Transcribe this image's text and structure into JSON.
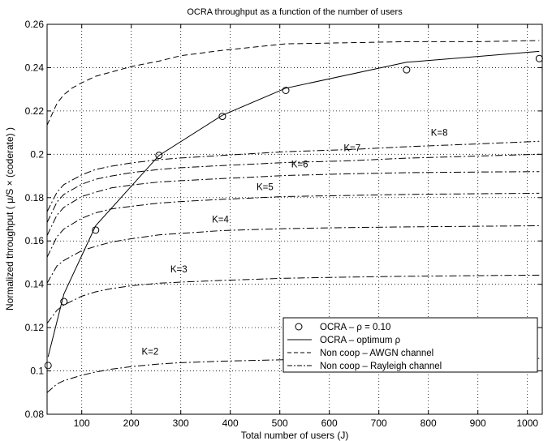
{
  "chart_data": {
    "type": "line",
    "title": "OCRA throughput as a function of the number of users",
    "xlabel": "Total number of users (J)",
    "ylabel": "Normalized throughput ( μ/S × (coderate) )",
    "xlim": [
      30,
      1030
    ],
    "ylim": [
      0.08,
      0.26
    ],
    "xticks": [
      100,
      200,
      300,
      400,
      500,
      600,
      700,
      800,
      900,
      1000
    ],
    "yticks": [
      0.08,
      0.1,
      0.12,
      0.14,
      0.16,
      0.18,
      0.2,
      0.22,
      0.24,
      0.26
    ],
    "xtick_labels": [
      "100",
      "200",
      "300",
      "400",
      "500",
      "600",
      "700",
      "800",
      "900",
      "1000"
    ],
    "ytick_labels": [
      "0.08",
      "0.1",
      "0.12",
      "0.14",
      "0.16",
      "0.18",
      "0.2",
      "0.22",
      "0.24",
      "0.26"
    ],
    "grid": "dotted",
    "legend_placement": "lower-right",
    "legend": [
      {
        "label": "OCRA – ρ = 0.10",
        "style": "marker-circle"
      },
      {
        "label": "OCRA – optimum    ρ",
        "style": "solid"
      },
      {
        "label": "Non coop – AWGN channel",
        "style": "dashed"
      },
      {
        "label": "Non coop – Rayleigh channel",
        "style": "dashdot"
      }
    ],
    "series": [
      {
        "style": "marker-circle",
        "x": [
          32,
          64,
          128,
          256,
          384,
          512,
          756,
          1024
        ],
        "y": [
          0.1025,
          0.132,
          0.165,
          0.1995,
          0.2175,
          0.2295,
          0.239,
          0.2442
        ]
      },
      {
        "style": "solid",
        "x": [
          32,
          64,
          128,
          256,
          384,
          512,
          756,
          1024
        ],
        "y": [
          0.1065,
          0.1355,
          0.167,
          0.1995,
          0.218,
          0.2305,
          0.2425,
          0.2475
        ]
      },
      {
        "style": "dashed",
        "x": [
          30,
          40,
          50,
          64,
          80,
          100,
          128,
          160,
          200,
          256,
          300,
          384,
          512,
          640,
          756,
          900,
          1024
        ],
        "y": [
          0.2135,
          0.2185,
          0.2235,
          0.2275,
          0.2305,
          0.233,
          0.236,
          0.238,
          0.2405,
          0.243,
          0.2455,
          0.248,
          0.251,
          0.2515,
          0.252,
          0.252,
          0.2525
        ]
      },
      {
        "style": "dashdot",
        "x": [
          30,
          50,
          64,
          100,
          128,
          160,
          200,
          256,
          300,
          384,
          512,
          640,
          756,
          900,
          1024
        ],
        "y": [
          0.09,
          0.094,
          0.0955,
          0.098,
          0.0995,
          0.1008,
          0.102,
          0.1032,
          0.1038,
          0.1045,
          0.1052,
          0.1055,
          0.1057,
          0.1058,
          0.1058
        ]
      },
      {
        "style": "dashdot",
        "x": [
          30,
          50,
          64,
          100,
          128,
          160,
          200,
          256,
          300,
          384,
          512,
          640,
          756,
          900,
          1024
        ],
        "y": [
          0.122,
          0.128,
          0.1305,
          0.1345,
          0.1365,
          0.138,
          0.1393,
          0.1405,
          0.141,
          0.1418,
          0.1428,
          0.1433,
          0.1437,
          0.144,
          0.1442
        ]
      },
      {
        "style": "dashdot",
        "x": [
          30,
          50,
          64,
          100,
          128,
          160,
          200,
          256,
          300,
          384,
          512,
          640,
          756,
          900,
          1024
        ],
        "y": [
          0.1405,
          0.1485,
          0.151,
          0.1555,
          0.1575,
          0.1595,
          0.161,
          0.1628,
          0.1635,
          0.1648,
          0.1657,
          0.1662,
          0.1665,
          0.1668,
          0.167
        ]
      },
      {
        "style": "dashdot",
        "x": [
          30,
          50,
          64,
          100,
          128,
          160,
          200,
          256,
          300,
          384,
          512,
          640,
          756,
          900,
          1024
        ],
        "y": [
          0.1525,
          0.162,
          0.1655,
          0.1705,
          0.173,
          0.1748,
          0.176,
          0.1775,
          0.1782,
          0.1792,
          0.1805,
          0.181,
          0.1815,
          0.1818,
          0.182
        ]
      },
      {
        "style": "dashdot",
        "x": [
          30,
          50,
          64,
          100,
          128,
          160,
          200,
          256,
          300,
          384,
          512,
          640,
          756,
          900,
          1024
        ],
        "y": [
          0.1625,
          0.172,
          0.1755,
          0.1805,
          0.1825,
          0.1845,
          0.1858,
          0.1872,
          0.1878,
          0.1888,
          0.1902,
          0.191,
          0.1915,
          0.1918,
          0.192
        ]
      },
      {
        "style": "dashdot",
        "x": [
          30,
          50,
          64,
          100,
          128,
          160,
          200,
          256,
          300,
          384,
          512,
          640,
          756,
          900,
          1024
        ],
        "y": [
          0.1685,
          0.178,
          0.1815,
          0.1862,
          0.1885,
          0.19,
          0.1915,
          0.193,
          0.1938,
          0.1948,
          0.1962,
          0.197,
          0.1982,
          0.1992,
          0.2
        ]
      },
      {
        "style": "dashdot",
        "x": [
          30,
          50,
          64,
          100,
          128,
          160,
          200,
          256,
          300,
          384,
          512,
          640,
          756,
          900,
          1024
        ],
        "y": [
          0.1735,
          0.1825,
          0.186,
          0.1905,
          0.193,
          0.1945,
          0.196,
          0.1975,
          0.1983,
          0.1995,
          0.2012,
          0.2022,
          0.2035,
          0.2048,
          0.206
        ]
      }
    ],
    "annotations": [
      {
        "text": "K=2",
        "x": 238,
        "y": 0.1075
      },
      {
        "text": "K=3",
        "x": 296,
        "y": 0.1455
      },
      {
        "text": "K=4",
        "x": 380,
        "y": 0.1685
      },
      {
        "text": "K=5",
        "x": 470,
        "y": 0.1835
      },
      {
        "text": "K=6",
        "x": 540,
        "y": 0.194
      },
      {
        "text": "K=7",
        "x": 646,
        "y": 0.2015
      },
      {
        "text": "K=8",
        "x": 822,
        "y": 0.2085
      }
    ]
  }
}
